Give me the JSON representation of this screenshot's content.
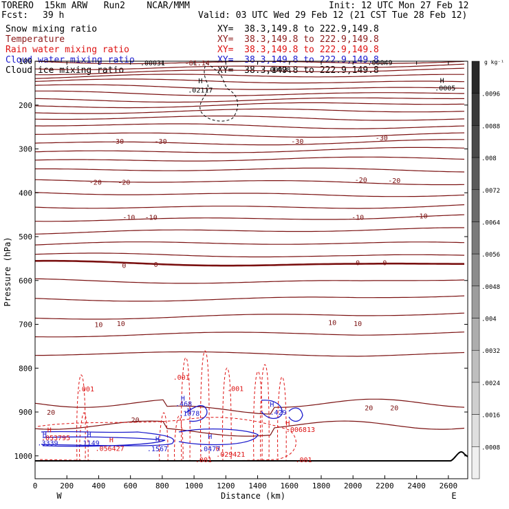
{
  "header": {
    "left_top": "TORERO  15km ARW   Run2    NCAR/MMM",
    "init": "Init: 12 UTC Mon 27 Feb 12",
    "fcst_label": "Fcst:",
    "fcst_value": "39 h",
    "valid": "Valid: 03 UTC Wed 29 Feb 12 (21 CST Tue 28 Feb 12)"
  },
  "legend": [
    {
      "label": "Snow mixing ratio",
      "xy": "XY=  38.3,149.8 to 222.9,149.8",
      "color": "#000000"
    },
    {
      "label": "Temperature",
      "xy": "XY=  38.3,149.8 to 222.9,149.8",
      "color": "#8b1a1a"
    },
    {
      "label": "Rain water mixing ratio",
      "xy": "XY=  38.3,149.8 to 222.9,149.8",
      "color": "#dd1111"
    },
    {
      "label": "Cloud water mixing ratio",
      "xy": "XY=  38.3,149.8 to 222.9,149.8",
      "color": "#1a1acc"
    },
    {
      "label": "Cloud ice mixing ratio",
      "xy": "XY=  38.3,149.8 to 222.9,149.8",
      "color": "#000000"
    }
  ],
  "colors": {
    "temperature": "#7a1010",
    "freezing_line": "#7a1010",
    "rain": "#dd1111",
    "cloud_water": "#1a1acc",
    "snow": "#000000",
    "terrain": "#000000",
    "colorbar_dark": "#444444",
    "colorbar_light": "#f0f0f0"
  },
  "chart_data": {
    "type": "contour",
    "xlabel": "Distance (km)",
    "ylabel": "Pressure (hPa)",
    "xlim": [
      0,
      2750
    ],
    "ylim": [
      1010,
      100
    ],
    "xticks": [
      0,
      200,
      400,
      600,
      800,
      1000,
      1200,
      1400,
      1600,
      1800,
      2000,
      2200,
      2400,
      2600
    ],
    "yticks": [
      100,
      200,
      300,
      400,
      500,
      600,
      700,
      800,
      900,
      1000
    ],
    "x_end_labels": {
      "left": "W",
      "right": "E"
    },
    "temperature_labels": [
      {
        "text": "-30",
        "x": 520,
        "p": 282
      },
      {
        "text": "-30",
        "x": 790,
        "p": 282
      },
      {
        "text": "-30",
        "x": 1650,
        "p": 282
      },
      {
        "text": "-30",
        "x": 2180,
        "p": 274
      },
      {
        "text": "-20",
        "x": 380,
        "p": 375
      },
      {
        "text": "-20",
        "x": 560,
        "p": 375
      },
      {
        "text": "-20",
        "x": 2050,
        "p": 370
      },
      {
        "text": "-20",
        "x": 2260,
        "p": 371
      },
      {
        "text": "-10",
        "x": 590,
        "p": 455
      },
      {
        "text": "-10",
        "x": 730,
        "p": 455
      },
      {
        "text": "-10",
        "x": 2030,
        "p": 455
      },
      {
        "text": "-10",
        "x": 2430,
        "p": 452
      },
      {
        "text": "0",
        "x": 560,
        "p": 565
      },
      {
        "text": "0",
        "x": 760,
        "p": 563
      },
      {
        "text": "0",
        "x": 2030,
        "p": 559
      },
      {
        "text": "0",
        "x": 2200,
        "p": 559
      },
      {
        "text": "10",
        "x": 400,
        "p": 700
      },
      {
        "text": "10",
        "x": 540,
        "p": 698
      },
      {
        "text": "10",
        "x": 1870,
        "p": 695
      },
      {
        "text": "10",
        "x": 2030,
        "p": 698
      },
      {
        "text": "20",
        "x": 100,
        "p": 900
      },
      {
        "text": "20",
        "x": 630,
        "p": 917
      },
      {
        "text": "20",
        "x": 2100,
        "p": 890
      },
      {
        "text": "20",
        "x": 2260,
        "p": 890
      },
      {
        "text": "-81.14",
        "x": 1020,
        "p": 103
      }
    ],
    "snow_labels": [
      {
        "text": ".00031",
        "x": 740,
        "p": 103
      },
      {
        "text": "H",
        "x": 1040,
        "p": 144
      },
      {
        "text": ".02117",
        "x": 1040,
        "p": 165
      },
      {
        "text": ".00028",
        "x": 1530,
        "p": 118
      },
      {
        "text": ".00049",
        "x": 2170,
        "p": 102
      },
      {
        "text": "H",
        "x": 2560,
        "p": 143
      },
      {
        "text": ".0005",
        "x": 2580,
        "p": 160
      }
    ],
    "rain_labels": [
      {
        "text": ".001",
        "x": 320,
        "p": 847
      },
      {
        "text": ".001",
        "x": 920,
        "p": 820
      },
      {
        "text": ".001",
        "x": 1260,
        "p": 846
      },
      {
        "text": "H",
        "x": 90,
        "p": 940
      },
      {
        "text": ".053795",
        "x": 130,
        "p": 958
      },
      {
        "text": "H",
        "x": 480,
        "p": 963
      },
      {
        "text": ".056427",
        "x": 470,
        "p": 982
      },
      {
        "text": "H",
        "x": 1150,
        "p": 982
      },
      {
        "text": ".029421",
        "x": 1230,
        "p": 996
      },
      {
        "text": "H",
        "x": 1590,
        "p": 924
      },
      {
        "text": ".006813",
        "x": 1670,
        "p": 939
      },
      {
        "text": ".001",
        "x": 1060,
        "p": 1008
      },
      {
        "text": ".001",
        "x": 1690,
        "p": 1008
      }
    ],
    "cloud_water_labels": [
      {
        "text": "H",
        "x": 930,
        "p": 868
      },
      {
        "text": ".468",
        "x": 935,
        "p": 880
      },
      {
        "text": "H",
        "x": 970,
        "p": 895
      },
      {
        "text": ".1078",
        "x": 970,
        "p": 902
      },
      {
        "text": "H",
        "x": 1490,
        "p": 882
      },
      {
        "text": ".429",
        "x": 1530,
        "p": 900
      },
      {
        "text": "H",
        "x": 60,
        "p": 950
      },
      {
        "text": ".3339",
        "x": 80,
        "p": 970
      },
      {
        "text": "H",
        "x": 340,
        "p": 950
      },
      {
        "text": ".1149",
        "x": 340,
        "p": 970
      },
      {
        "text": "H",
        "x": 770,
        "p": 960
      },
      {
        "text": ".1567",
        "x": 770,
        "p": 983
      },
      {
        "text": "H",
        "x": 1100,
        "p": 955
      },
      {
        "text": ".0477",
        "x": 1100,
        "p": 983
      }
    ],
    "colorbar": {
      "unit": "g kg⁻¹",
      "labels": [
        ".0096",
        ".0088",
        ".008",
        ".0072",
        ".0064",
        ".0056",
        ".0048",
        ".004",
        ".0032",
        ".0024",
        ".0016",
        ".0008"
      ]
    }
  }
}
